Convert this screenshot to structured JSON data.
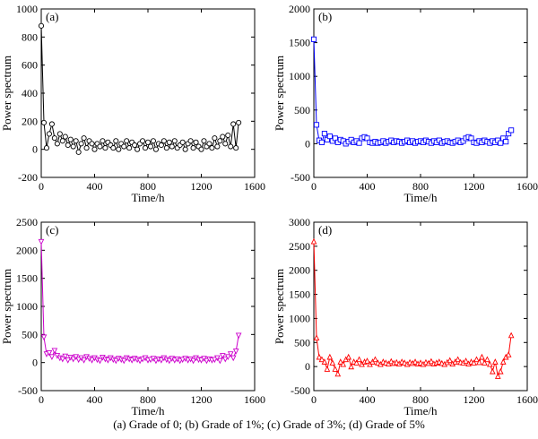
{
  "caption": "(a) Grade of 0; (b) Grade of 1%; (c) Grade of 3%; (d) Grade of 5%",
  "chart_data": [
    {
      "type": "line",
      "panel": "(a)",
      "color": "#000000",
      "marker": "circle",
      "xlabel": "Time/h",
      "ylabel": "Power spectrum",
      "xlim": [
        0,
        1600
      ],
      "ylim": [
        -200,
        1000
      ],
      "xticks": [
        0,
        400,
        800,
        1200,
        1600
      ],
      "yticks": [
        -200,
        0,
        200,
        400,
        600,
        800,
        1000
      ],
      "series": [
        {
          "x": [
            0,
            20,
            40,
            60,
            80,
            100,
            120,
            140,
            160,
            180,
            200,
            220,
            240,
            260,
            280,
            300,
            320,
            340,
            360,
            380,
            400,
            420,
            440,
            460,
            480,
            500,
            520,
            540,
            560,
            580,
            600,
            620,
            640,
            660,
            680,
            700,
            720,
            740,
            760,
            780,
            800,
            820,
            840,
            860,
            880,
            900,
            920,
            940,
            960,
            980,
            1000,
            1020,
            1040,
            1060,
            1080,
            1100,
            1120,
            1140,
            1160,
            1180,
            1200,
            1220,
            1240,
            1260,
            1280,
            1300,
            1320,
            1340,
            1360,
            1380,
            1400,
            1420,
            1440,
            1460,
            1480
          ],
          "y": [
            880,
            190,
            10,
            110,
            180,
            80,
            40,
            110,
            60,
            90,
            30,
            70,
            20,
            60,
            -20,
            40,
            80,
            10,
            60,
            40,
            0,
            40,
            20,
            60,
            10,
            50,
            30,
            10,
            60,
            0,
            40,
            20,
            60,
            10,
            50,
            30,
            0,
            40,
            60,
            10,
            50,
            20,
            60,
            0,
            40,
            30,
            60,
            10,
            50,
            20,
            60,
            10,
            30,
            50,
            0,
            40,
            60,
            10,
            50,
            20,
            0,
            60,
            20,
            40,
            10,
            80,
            20,
            60,
            90,
            40,
            100,
            20,
            180,
            10,
            190
          ]
        }
      ]
    },
    {
      "type": "line",
      "panel": "(b)",
      "color": "#0000ff",
      "marker": "square",
      "xlabel": "Time/h",
      "ylabel": "Power spectrum",
      "xlim": [
        0,
        1600
      ],
      "ylim": [
        -500,
        2000
      ],
      "xticks": [
        0,
        400,
        800,
        1200,
        1600
      ],
      "yticks": [
        -500,
        0,
        500,
        1000,
        1500,
        2000
      ],
      "series": [
        {
          "x": [
            0,
            20,
            40,
            60,
            80,
            100,
            120,
            140,
            160,
            180,
            200,
            220,
            240,
            260,
            280,
            300,
            320,
            340,
            360,
            380,
            400,
            420,
            440,
            460,
            480,
            500,
            520,
            540,
            560,
            580,
            600,
            620,
            640,
            660,
            680,
            700,
            720,
            740,
            760,
            780,
            800,
            820,
            840,
            860,
            880,
            900,
            920,
            940,
            960,
            980,
            1000,
            1020,
            1040,
            1060,
            1080,
            1100,
            1120,
            1140,
            1160,
            1180,
            1200,
            1220,
            1240,
            1260,
            1280,
            1300,
            1320,
            1340,
            1360,
            1380,
            1400,
            1420,
            1440,
            1460,
            1480
          ],
          "y": [
            1550,
            280,
            50,
            20,
            150,
            60,
            110,
            40,
            80,
            20,
            60,
            40,
            0,
            30,
            60,
            20,
            40,
            10,
            80,
            100,
            80,
            20,
            10,
            30,
            10,
            20,
            40,
            10,
            30,
            50,
            20,
            40,
            30,
            10,
            30,
            50,
            20,
            40,
            10,
            30,
            40,
            20,
            50,
            30,
            10,
            40,
            20,
            50,
            10,
            30,
            40,
            20,
            10,
            30,
            50,
            20,
            40,
            80,
            100,
            80,
            20,
            10,
            40,
            20,
            50,
            30,
            10,
            40,
            20,
            50,
            10,
            80,
            30,
            150,
            200
          ]
        }
      ]
    },
    {
      "type": "line",
      "panel": "(c)",
      "color": "#cc00cc",
      "marker": "triangle-down",
      "xlabel": "Time/h",
      "ylabel": "Power spectrum",
      "xlim": [
        0,
        1600
      ],
      "ylim": [
        -500,
        2500
      ],
      "xticks": [
        0,
        400,
        800,
        1200,
        1600
      ],
      "yticks": [
        -500,
        0,
        500,
        1000,
        1500,
        2000,
        2500
      ],
      "series": [
        {
          "x": [
            0,
            20,
            40,
            60,
            80,
            100,
            120,
            140,
            160,
            180,
            200,
            220,
            240,
            260,
            280,
            300,
            320,
            340,
            360,
            380,
            400,
            420,
            440,
            460,
            480,
            500,
            520,
            540,
            560,
            580,
            600,
            620,
            640,
            660,
            680,
            700,
            720,
            740,
            760,
            780,
            800,
            820,
            840,
            860,
            880,
            900,
            920,
            940,
            960,
            980,
            1000,
            1020,
            1040,
            1060,
            1080,
            1100,
            1120,
            1140,
            1160,
            1180,
            1200,
            1220,
            1240,
            1260,
            1280,
            1300,
            1320,
            1340,
            1360,
            1380,
            1400,
            1420,
            1440,
            1460,
            1480
          ],
          "y": [
            2150,
            450,
            150,
            170,
            100,
            210,
            120,
            80,
            60,
            110,
            40,
            90,
            60,
            100,
            50,
            80,
            40,
            100,
            70,
            40,
            80,
            50,
            30,
            90,
            60,
            40,
            80,
            50,
            30,
            70,
            50,
            30,
            80,
            60,
            40,
            70,
            50,
            30,
            60,
            80,
            40,
            50,
            70,
            30,
            60,
            40,
            80,
            50,
            30,
            70,
            40,
            60,
            30,
            50,
            70,
            40,
            60,
            30,
            80,
            50,
            40,
            70,
            30,
            60,
            40,
            50,
            80,
            30,
            120,
            60,
            100,
            150,
            80,
            200,
            480
          ]
        }
      ]
    },
    {
      "type": "line",
      "panel": "(d)",
      "color": "#ff0000",
      "marker": "triangle-up",
      "xlabel": "Time/h",
      "ylabel": "Power spectrum",
      "xlim": [
        0,
        1600
      ],
      "ylim": [
        -500,
        3000
      ],
      "xticks": [
        0,
        400,
        800,
        1200,
        1600
      ],
      "yticks": [
        -500,
        0,
        500,
        1000,
        1500,
        2000,
        2500,
        3000
      ],
      "series": [
        {
          "x": [
            0,
            20,
            40,
            60,
            80,
            100,
            120,
            140,
            160,
            180,
            200,
            220,
            240,
            260,
            280,
            300,
            320,
            340,
            360,
            380,
            400,
            420,
            440,
            460,
            480,
            500,
            520,
            540,
            560,
            580,
            600,
            620,
            640,
            660,
            680,
            700,
            720,
            740,
            760,
            780,
            800,
            820,
            840,
            860,
            880,
            900,
            920,
            940,
            960,
            980,
            1000,
            1020,
            1040,
            1060,
            1080,
            1100,
            1120,
            1140,
            1160,
            1180,
            1200,
            1220,
            1240,
            1260,
            1280,
            1300,
            1320,
            1340,
            1360,
            1380,
            1400,
            1420,
            1440,
            1460,
            1480
          ],
          "y": [
            2600,
            600,
            200,
            150,
            100,
            -50,
            200,
            80,
            -50,
            -150,
            100,
            50,
            150,
            200,
            0,
            100,
            80,
            150,
            50,
            100,
            120,
            50,
            100,
            150,
            80,
            50,
            100,
            80,
            60,
            110,
            70,
            90,
            60,
            100,
            80,
            50,
            90,
            70,
            100,
            60,
            80,
            50,
            90,
            70,
            110,
            60,
            80,
            100,
            70,
            50,
            90,
            130,
            60,
            100,
            150,
            90,
            80,
            120,
            60,
            100,
            80,
            150,
            90,
            200,
            80,
            150,
            50,
            -100,
            100,
            -200,
            -100,
            100,
            200,
            250,
            650
          ]
        }
      ]
    }
  ]
}
